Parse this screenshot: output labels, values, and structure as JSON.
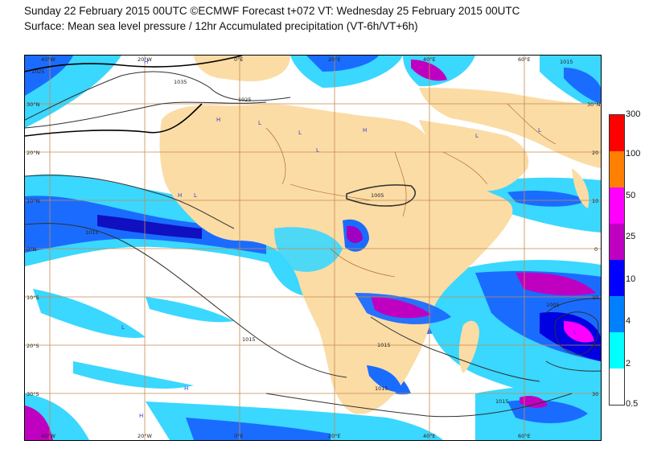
{
  "header": {
    "line1": "Sunday 22 February 2015 00UTC ©ECMWF Forecast t+072 VT: Wednesday 25 February 2015 00UTC",
    "line2": "Surface: Mean sea level pressure / 12hr Accumulated precipitation (VT-6h/VT+6h)"
  },
  "axes": {
    "lon_top": [
      "40°W",
      "20°W",
      "0°E",
      "20°E",
      "40°E",
      "60°E"
    ],
    "lon_bottom": [
      "40°W",
      "20°W",
      "0°E",
      "20°E",
      "40°E",
      "60°E"
    ],
    "lat_left": [
      "30°N",
      "20°N",
      "10°N",
      "0°N",
      "10°S",
      "20°S",
      "30°S"
    ],
    "lat_right": [
      "30°N",
      "20",
      "10",
      "0",
      "10",
      "20",
      "30"
    ]
  },
  "isobars": {
    "labels": [
      "1025",
      "1035",
      "1025",
      "1015",
      "1005",
      "1015",
      "1015",
      "1015",
      "1015",
      "1005",
      "1015"
    ]
  },
  "pressure_centres": [
    "H",
    "H",
    "L",
    "L",
    "H",
    "L",
    "H",
    "L",
    "L",
    "L",
    "H",
    "L",
    "H",
    "L"
  ],
  "legend": {
    "levels": [
      "300",
      "100",
      "50",
      "25",
      "10",
      "4",
      "2",
      "0.5"
    ],
    "colors": [
      "#ff0000",
      "#ff8000",
      "#ff00ff",
      "#c000c0",
      "#0000ff",
      "#0080ff",
      "#00ffff",
      "#ffffff"
    ]
  },
  "colors": {
    "land": "#fbdca5",
    "ocean": "#ffffff",
    "grid": "#c88a50",
    "isobar": "#303030"
  }
}
